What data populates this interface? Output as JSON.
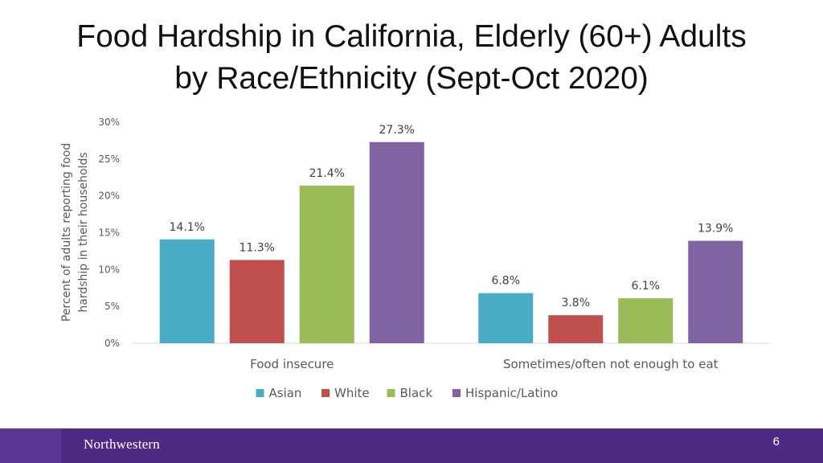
{
  "slide": {
    "title_line1": "Food Hardship in California, Elderly (60+) Adults",
    "title_line2": "by Race/Ethnicity (Sept-Oct 2020)",
    "brand": "Northwestern",
    "page_number": "6"
  },
  "chart_data": {
    "type": "bar",
    "categories": [
      "Food insecure",
      "Sometimes/often not enough to eat"
    ],
    "series": [
      {
        "name": "Asian",
        "color": "#4bacc6",
        "values": [
          14.1,
          6.8
        ],
        "labels": [
          "14.1%",
          "6.8%"
        ]
      },
      {
        "name": "White",
        "color": "#c0504d",
        "values": [
          11.3,
          3.8
        ],
        "labels": [
          "11.3%",
          "3.8%"
        ]
      },
      {
        "name": "Black",
        "color": "#9bbb59",
        "values": [
          21.4,
          6.1
        ],
        "labels": [
          "21.4%",
          "6.1%"
        ]
      },
      {
        "name": "Hispanic/Latino",
        "color": "#8064a2",
        "values": [
          27.3,
          13.9
        ],
        "labels": [
          "27.3%",
          "13.9%"
        ]
      }
    ],
    "ylabel_line1": "Percent of adults reporting food",
    "ylabel_line2": "hardship in their households",
    "ylim": [
      0,
      30
    ],
    "yticks": [
      0,
      5,
      10,
      15,
      20,
      25,
      30
    ],
    "ytick_labels": [
      "0%",
      "5%",
      "10%",
      "15%",
      "20%",
      "25%",
      "30%"
    ],
    "grid": false,
    "legend_position": "bottom"
  }
}
